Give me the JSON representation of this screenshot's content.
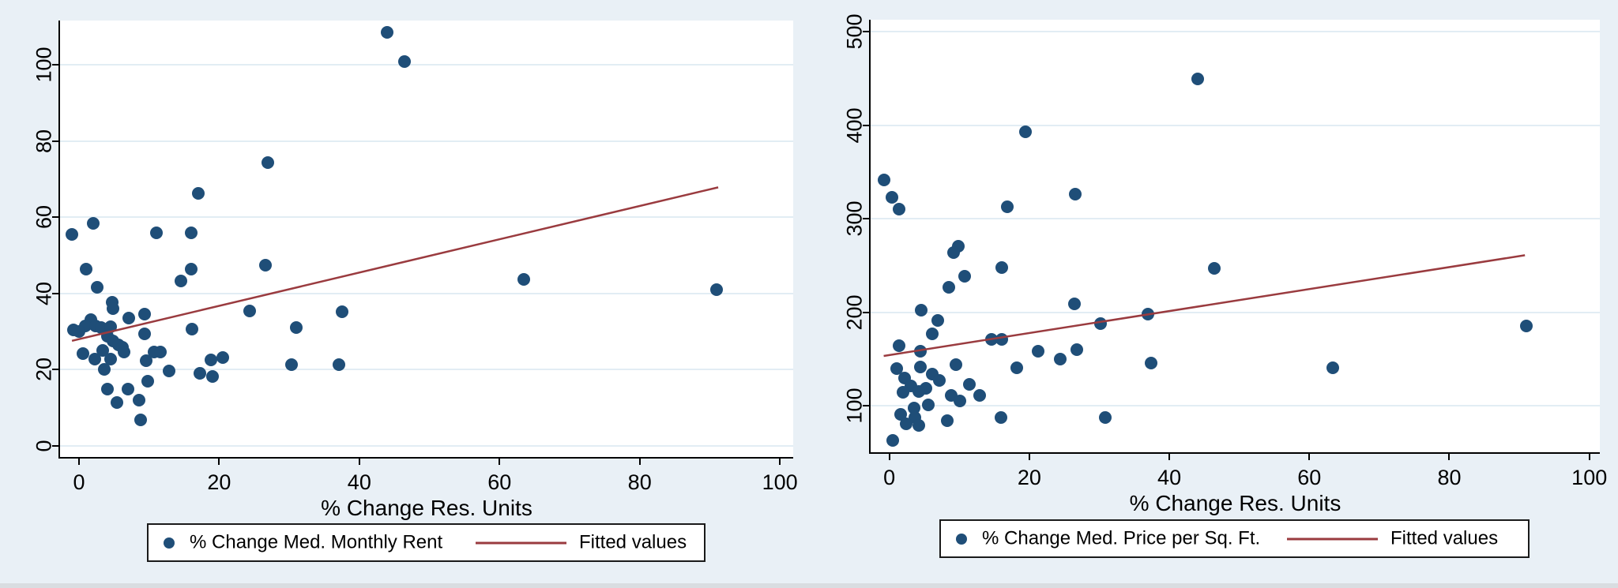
{
  "page": {
    "background": "#e9f0f6",
    "bottom_strip_color": "#d9dde1"
  },
  "colors": {
    "dot": "#1f4e78",
    "fit_line": "#9a3b3f",
    "grid": "#e2edf4",
    "axis": "#000000",
    "plot_bg": "#ffffff"
  },
  "chart_data": [
    {
      "type": "scatter",
      "xlabel": "% Change Res. Units",
      "x_ticks": [
        0,
        20,
        40,
        60,
        80,
        100
      ],
      "y_ticks": [
        0,
        20,
        40,
        60,
        80,
        100
      ],
      "xlim": [
        -2.7,
        101.9
      ],
      "ylim": [
        -2.9,
        111.7
      ],
      "grid": true,
      "legend_position": "bottom",
      "legend": {
        "marker_label": "% Change Med. Monthly Rent",
        "line_label": "Fitted values"
      },
      "points": [
        [
          -1,
          55.5
        ],
        [
          2,
          58.5
        ],
        [
          11,
          56
        ],
        [
          16,
          56
        ],
        [
          44,
          108.5
        ],
        [
          46.5,
          101
        ],
        [
          27,
          74.3
        ],
        [
          17,
          66.3
        ],
        [
          1,
          46.5
        ],
        [
          16,
          46.5
        ],
        [
          26.6,
          47.5
        ],
        [
          14.5,
          43.3
        ],
        [
          2.6,
          41.7
        ],
        [
          63.5,
          43.7
        ],
        [
          91,
          41
        ],
        [
          4.7,
          37.7
        ],
        [
          4.9,
          36
        ],
        [
          24.4,
          35.4
        ],
        [
          37.5,
          35.3
        ],
        [
          9.4,
          34.6
        ],
        [
          7.1,
          33.6
        ],
        [
          1.7,
          33.2
        ],
        [
          0.9,
          31.6
        ],
        [
          2.4,
          31.4
        ],
        [
          3.2,
          31.1
        ],
        [
          4.5,
          31.3
        ],
        [
          0,
          30.1
        ],
        [
          -0.8,
          30.4
        ],
        [
          16.1,
          30.7
        ],
        [
          31,
          31
        ],
        [
          9.4,
          29.4
        ],
        [
          4.1,
          28.9
        ],
        [
          4.9,
          27.6
        ],
        [
          5.6,
          26.6
        ],
        [
          6.2,
          25.9
        ],
        [
          6.4,
          24.7
        ],
        [
          0.6,
          24.2
        ],
        [
          3.4,
          25.1
        ],
        [
          2.3,
          22.8
        ],
        [
          4.5,
          22.8
        ],
        [
          9.6,
          22.3
        ],
        [
          10.7,
          24.7
        ],
        [
          11.6,
          24.7
        ],
        [
          18.8,
          22.5
        ],
        [
          20.5,
          23.3
        ],
        [
          30.3,
          21.3
        ],
        [
          37.1,
          21.3
        ],
        [
          3.6,
          20
        ],
        [
          12.8,
          19.7
        ],
        [
          17.3,
          19.1
        ],
        [
          19,
          18.3
        ],
        [
          9.8,
          16.9
        ],
        [
          4.1,
          15
        ],
        [
          7,
          15
        ],
        [
          5.4,
          11.4
        ],
        [
          8.6,
          12
        ],
        [
          8.8,
          6.9
        ]
      ],
      "fit_line": {
        "x1": -1,
        "y1": 27.6,
        "x2": 91.2,
        "y2": 67.9
      }
    },
    {
      "type": "scatter",
      "xlabel": "% Change Res. Units",
      "x_ticks": [
        0,
        20,
        40,
        60,
        80,
        100
      ],
      "y_ticks": [
        100,
        200,
        300,
        400,
        500
      ],
      "xlim": [
        -2.67,
        101.5
      ],
      "ylim": [
        50.5,
        512.6
      ],
      "grid": true,
      "legend_position": "bottom",
      "legend": {
        "marker_label": "% Change Med. Price per Sq. Ft.",
        "line_label": "Fitted values"
      },
      "points": [
        [
          -0.8,
          341
        ],
        [
          0.4,
          323
        ],
        [
          1.4,
          310
        ],
        [
          16.9,
          313
        ],
        [
          26.6,
          326
        ],
        [
          44,
          449
        ],
        [
          19.5,
          393
        ],
        [
          9.9,
          271
        ],
        [
          9.2,
          264
        ],
        [
          16.1,
          248
        ],
        [
          10.8,
          238.5
        ],
        [
          8.5,
          227
        ],
        [
          46.4,
          247
        ],
        [
          26.4,
          209
        ],
        [
          4.5,
          202.5
        ],
        [
          37,
          198
        ],
        [
          6.9,
          191
        ],
        [
          30.2,
          188
        ],
        [
          6.1,
          177
        ],
        [
          14.6,
          171
        ],
        [
          16.1,
          171.5
        ],
        [
          1.4,
          164
        ],
        [
          4.4,
          158.5
        ],
        [
          21.2,
          158.5
        ],
        [
          26.8,
          160
        ],
        [
          24.4,
          150
        ],
        [
          9.5,
          144
        ],
        [
          18.2,
          141
        ],
        [
          37.4,
          146
        ],
        [
          1,
          140
        ],
        [
          4.4,
          141.5
        ],
        [
          2.2,
          129.5
        ],
        [
          6.1,
          134
        ],
        [
          7.1,
          127.5
        ],
        [
          3.1,
          121
        ],
        [
          5.2,
          119
        ],
        [
          2,
          115
        ],
        [
          4.2,
          115.5
        ],
        [
          11.4,
          123
        ],
        [
          12.9,
          111
        ],
        [
          8.8,
          111
        ],
        [
          10.1,
          105
        ],
        [
          5.6,
          101
        ],
        [
          3.5,
          98
        ],
        [
          1.6,
          91
        ],
        [
          3.7,
          88
        ],
        [
          2.4,
          81
        ],
        [
          4.2,
          79
        ],
        [
          8.3,
          84
        ],
        [
          15.9,
          88
        ],
        [
          30.8,
          88
        ],
        [
          63.3,
          141
        ],
        [
          91,
          185.5
        ],
        [
          0.5,
          63
        ]
      ],
      "fit_line": {
        "x1": -0.8,
        "y1": 153.4,
        "x2": 90.8,
        "y2": 261
      }
    }
  ]
}
